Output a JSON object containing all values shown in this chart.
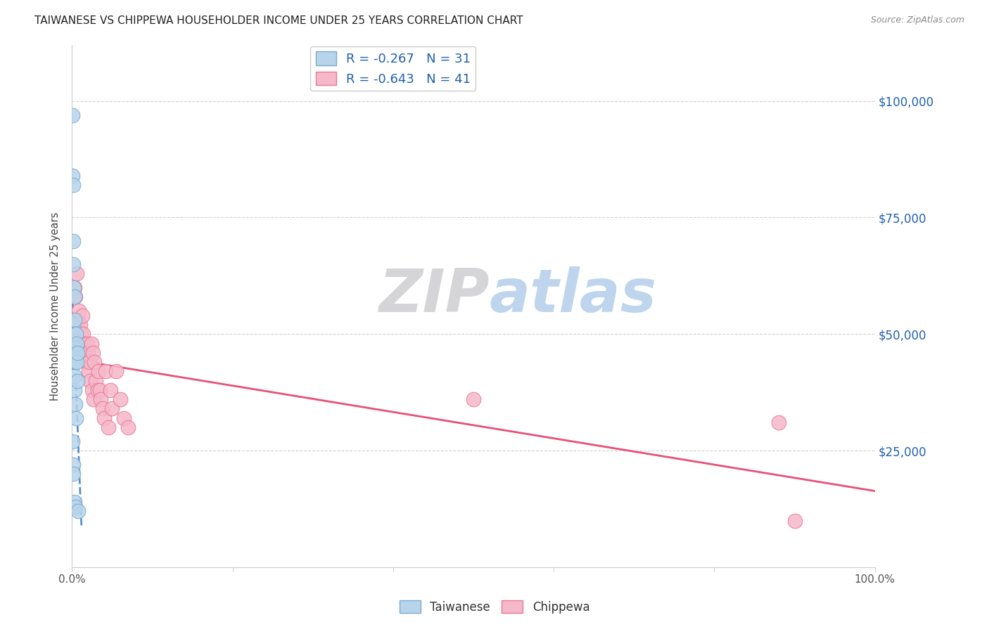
{
  "title": "TAIWANESE VS CHIPPEWA HOUSEHOLDER INCOME UNDER 25 YEARS CORRELATION CHART",
  "source": "Source: ZipAtlas.com",
  "ylabel": "Householder Income Under 25 years",
  "watermark_zip": "ZIP",
  "watermark_atlas": "atlas",
  "legend_taiwanese": {
    "R": -0.267,
    "N": 31
  },
  "legend_chippewa": {
    "R": -0.643,
    "N": 41
  },
  "ytick_labels": [
    "$25,000",
    "$50,000",
    "$75,000",
    "$100,000"
  ],
  "ytick_values": [
    25000,
    50000,
    75000,
    100000
  ],
  "xmin": 0.0,
  "xmax": 1.0,
  "ymin": 0,
  "ymax": 112000,
  "taiwanese_color": "#b8d4ea",
  "chippewa_color": "#f5b8c8",
  "taiwanese_edge": "#7aaacf",
  "chippewa_edge": "#e87898",
  "trend_taiwanese_color": "#5590cc",
  "trend_chippewa_color": "#e8507a",
  "taiwanese_x": [
    0.0005,
    0.001,
    0.001,
    0.0015,
    0.0015,
    0.002,
    0.002,
    0.002,
    0.002,
    0.0025,
    0.0025,
    0.003,
    0.003,
    0.003,
    0.003,
    0.003,
    0.003,
    0.003,
    0.003,
    0.004,
    0.004,
    0.004,
    0.004,
    0.005,
    0.005,
    0.005,
    0.006,
    0.006,
    0.007,
    0.007,
    0.008
  ],
  "taiwanese_y": [
    97000,
    84000,
    27000,
    82000,
    22000,
    70000,
    65000,
    52000,
    20000,
    60000,
    48000,
    58000,
    53000,
    50000,
    47000,
    44000,
    41000,
    38000,
    14000,
    50000,
    46000,
    35000,
    13000,
    50000,
    44000,
    32000,
    48000,
    44000,
    46000,
    40000,
    12000
  ],
  "chippewa_x": [
    0.003,
    0.004,
    0.006,
    0.008,
    0.009,
    0.01,
    0.011,
    0.012,
    0.013,
    0.014,
    0.015,
    0.016,
    0.018,
    0.019,
    0.02,
    0.021,
    0.022,
    0.023,
    0.024,
    0.025,
    0.026,
    0.027,
    0.028,
    0.03,
    0.032,
    0.033,
    0.035,
    0.036,
    0.038,
    0.04,
    0.042,
    0.045,
    0.048,
    0.05,
    0.055,
    0.06,
    0.065,
    0.07,
    0.5,
    0.88,
    0.9
  ],
  "chippewa_y": [
    60000,
    58000,
    63000,
    53000,
    55000,
    52000,
    50000,
    48000,
    54000,
    50000,
    48000,
    46000,
    44000,
    48000,
    46000,
    42000,
    44000,
    40000,
    48000,
    38000,
    46000,
    36000,
    44000,
    40000,
    38000,
    42000,
    38000,
    36000,
    34000,
    32000,
    42000,
    30000,
    38000,
    34000,
    42000,
    36000,
    32000,
    30000,
    36000,
    31000,
    10000
  ]
}
